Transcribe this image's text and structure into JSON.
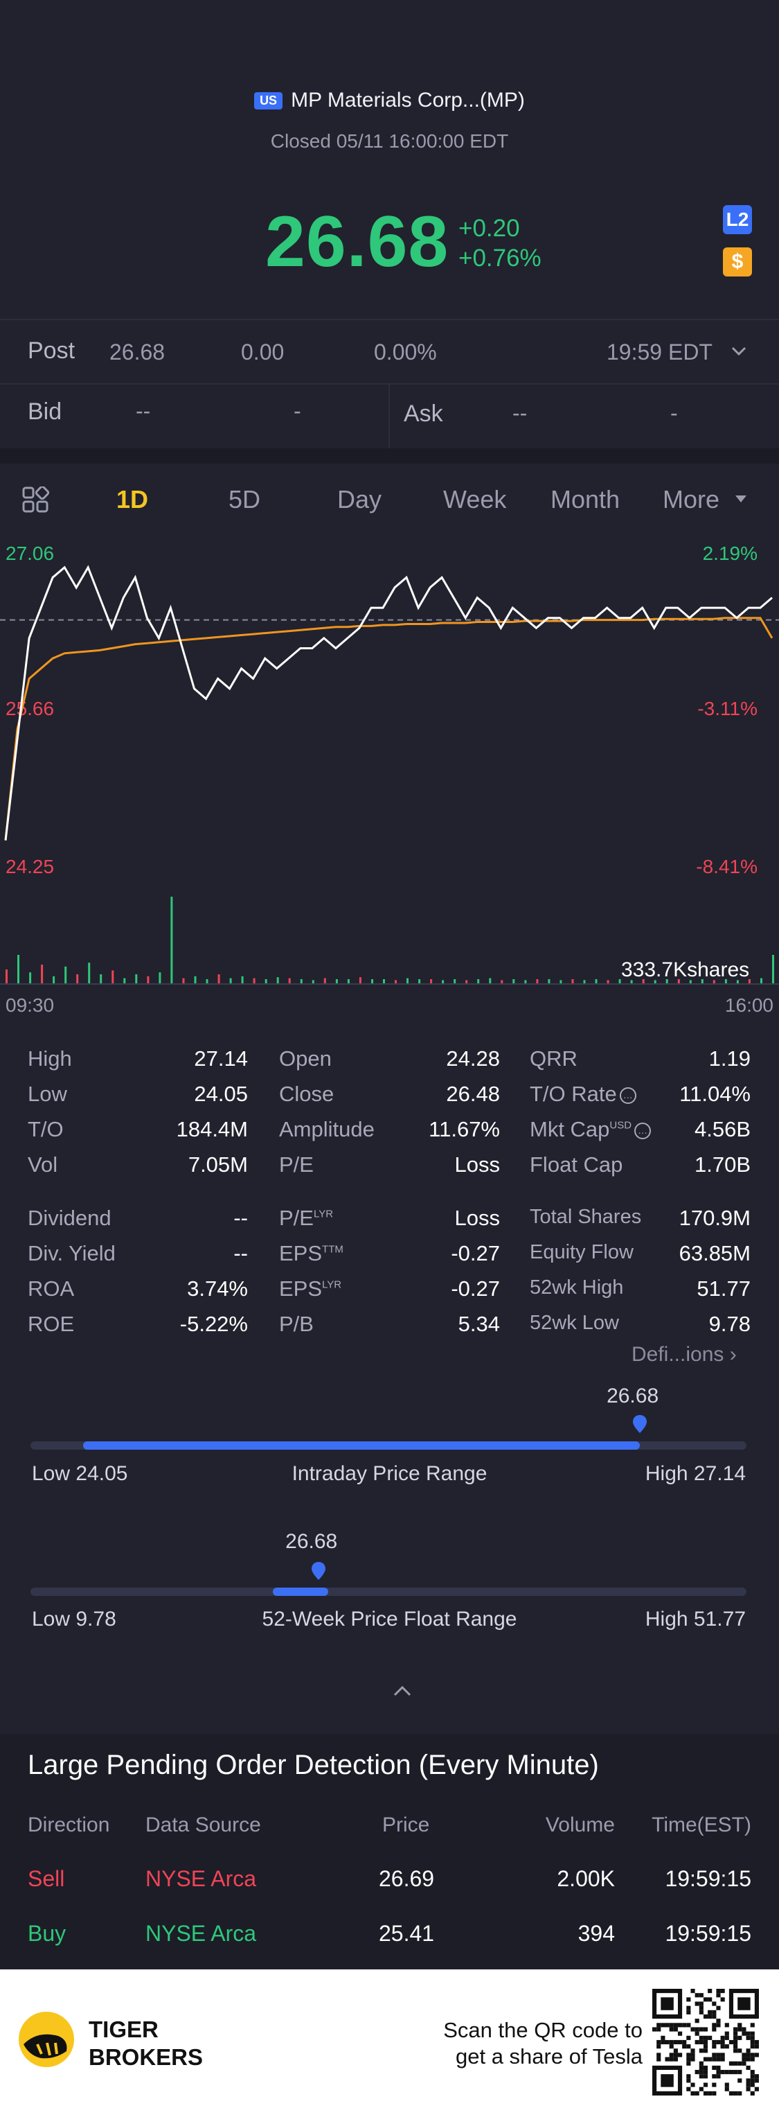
{
  "header": {
    "market_badge": "US",
    "stock_title": "MP Materials Corp...(MP)",
    "status": "Closed 05/11 16:00:00 EDT",
    "price": "26.68",
    "change": "+0.20",
    "change_pct": "+0.76%",
    "l2_badge": "L2",
    "dollar_badge": "$",
    "price_color": "#2fc77a"
  },
  "post": {
    "label": "Post",
    "price": "26.68",
    "change": "0.00",
    "change_pct": "0.00%",
    "time": "19:59 EDT"
  },
  "bid_ask": {
    "bid_label": "Bid",
    "bid_price": "--",
    "bid_size": "-",
    "ask_label": "Ask",
    "ask_price": "--",
    "ask_size": "-"
  },
  "tabs": [
    {
      "label": "1D",
      "active": true
    },
    {
      "label": "5D",
      "active": false
    },
    {
      "label": "Day",
      "active": false
    },
    {
      "label": "Week",
      "active": false
    },
    {
      "label": "Month",
      "active": false
    },
    {
      "label": "More",
      "active": false
    }
  ],
  "chart_data": {
    "type": "line",
    "title": "",
    "y_left_labels": [
      "27.06",
      "25.66",
      "24.25"
    ],
    "y_right_labels": [
      "2.19%",
      "-3.11%",
      "-8.41%"
    ],
    "ylim": [
      24.25,
      27.06
    ],
    "prev_close": 26.48,
    "x_labels": [
      "09:30",
      "16:00"
    ],
    "volume_label": "333.7Kshares",
    "series": [
      {
        "color": "#ffffff",
        "values": [
          24.3,
          25.3,
          26.3,
          26.6,
          26.9,
          27.0,
          26.8,
          27.0,
          26.7,
          26.4,
          26.7,
          26.9,
          26.5,
          26.3,
          26.6,
          26.2,
          25.8,
          25.7,
          25.9,
          25.8,
          26.0,
          25.9,
          26.1,
          26.0,
          26.1,
          26.2,
          26.2,
          26.3,
          26.2,
          26.3,
          26.4,
          26.6,
          26.6,
          26.8,
          26.9,
          26.6,
          26.8,
          26.9,
          26.7,
          26.5,
          26.7,
          26.6,
          26.4,
          26.6,
          26.5,
          26.4,
          26.5,
          26.5,
          26.4,
          26.5,
          26.5,
          26.6,
          26.5,
          26.5,
          26.6,
          26.4,
          26.6,
          26.6,
          26.5,
          26.6,
          26.6,
          26.6,
          26.5,
          26.6,
          26.6,
          26.7
        ]
      },
      {
        "color": "#f0951f",
        "values": [
          24.3,
          25.4,
          25.9,
          26.0,
          26.1,
          26.15,
          26.16,
          26.17,
          26.18,
          26.2,
          26.22,
          26.24,
          26.25,
          26.26,
          26.27,
          26.28,
          26.29,
          26.3,
          26.31,
          26.32,
          26.33,
          26.34,
          26.35,
          26.36,
          26.37,
          26.38,
          26.39,
          26.4,
          26.41,
          26.41,
          26.42,
          26.42,
          26.43,
          26.43,
          26.44,
          26.44,
          26.44,
          26.45,
          26.45,
          26.45,
          26.46,
          26.46,
          26.46,
          26.46,
          26.47,
          26.47,
          26.47,
          26.47,
          26.47,
          26.48,
          26.48,
          26.48,
          26.48,
          26.48,
          26.48,
          26.49,
          26.49,
          26.49,
          26.49,
          26.49,
          26.49,
          26.5,
          26.5,
          26.5,
          26.5,
          26.3
        ]
      }
    ],
    "volume_bars": [
      0.15,
      0.3,
      0.12,
      0.2,
      0.08,
      0.18,
      0.1,
      0.22,
      0.1,
      0.14,
      0.06,
      0.1,
      0.08,
      0.12,
      0.9,
      0.06,
      0.08,
      0.05,
      0.1,
      0.06,
      0.08,
      0.06,
      0.05,
      0.07,
      0.06,
      0.05,
      0.04,
      0.06,
      0.05,
      0.05,
      0.07,
      0.05,
      0.05,
      0.04,
      0.06,
      0.05,
      0.05,
      0.04,
      0.05,
      0.04,
      0.05,
      0.06,
      0.04,
      0.05,
      0.04,
      0.05,
      0.05,
      0.04,
      0.05,
      0.04,
      0.05,
      0.04,
      0.05,
      0.04,
      0.05,
      0.04,
      0.05,
      0.05,
      0.04,
      0.05,
      0.04,
      0.05,
      0.04,
      0.05,
      0.06,
      0.3
    ]
  },
  "stats": {
    "col1": [
      {
        "label": "High",
        "value": "27.14"
      },
      {
        "label": "Low",
        "value": "24.05"
      },
      {
        "label": "T/O",
        "value": "184.4M"
      },
      {
        "label": "Vol",
        "value": "7.05M"
      }
    ],
    "col2": [
      {
        "label": "Open",
        "value": "24.28"
      },
      {
        "label": "Close",
        "value": "26.48"
      },
      {
        "label": "Amplitude",
        "value": "11.67%"
      },
      {
        "label": "P/E",
        "value": "Loss"
      }
    ],
    "col3": [
      {
        "label": "QRR",
        "value": "1.19"
      },
      {
        "label": "T/O Rate",
        "value": "11.04%"
      },
      {
        "label": "Mkt Cap",
        "value": "4.56B",
        "sup": "USD"
      },
      {
        "label": "Float Cap",
        "value": "1.70B"
      }
    ],
    "col1b": [
      {
        "label": "Dividend",
        "value": "--"
      },
      {
        "label": "Div. Yield",
        "value": "--"
      },
      {
        "label": "ROA",
        "value": "3.74%"
      },
      {
        "label": "ROE",
        "value": "-5.22%"
      }
    ],
    "col2b": [
      {
        "label": "P/E",
        "sup": "LYR",
        "value": "Loss"
      },
      {
        "label": "EPS",
        "sup": "TTM",
        "value": "-0.27"
      },
      {
        "label": "EPS",
        "sup": "LYR",
        "value": "-0.27"
      },
      {
        "label": "P/B",
        "value": "5.34"
      }
    ],
    "col3b": [
      {
        "label": "Total Shares",
        "value": "170.9M"
      },
      {
        "label": "Equity Flow",
        "value": "63.85M"
      },
      {
        "label": "52wk High",
        "value": "51.77"
      },
      {
        "label": "52wk Low",
        "value": "9.78"
      }
    ],
    "definitions_link": "Defi...ions"
  },
  "intraday_range": {
    "low_label": "Low 24.05",
    "title": "Intraday Price Range",
    "high_label": "High 27.14",
    "current": "26.68",
    "low": 24.05,
    "high": 27.14,
    "value": 26.68
  },
  "week52_range": {
    "low_label": "Low 9.78",
    "title": "52-Week Price Float Range",
    "high_label": "High 51.77",
    "current": "26.68",
    "low": 9.78,
    "high": 51.77,
    "value": 26.68
  },
  "orders": {
    "title": "Large Pending Order Detection (Every Minute)",
    "headers": [
      "Direction",
      "Data Source",
      "Price",
      "Volume",
      "Time(EST)"
    ],
    "rows": [
      {
        "direction": "Sell",
        "source": "NYSE Arca",
        "price": "26.69",
        "volume": "2.00K",
        "time": "19:59:15",
        "color": "#f04456"
      },
      {
        "direction": "Buy",
        "source": "NYSE Arca",
        "price": "25.41",
        "volume": "394",
        "time": "19:59:15",
        "color": "#2fc77a"
      }
    ]
  },
  "footer": {
    "brand_line1": "TIGER",
    "brand_line2": "BROKERS",
    "scan_line1": "Scan the QR code to",
    "scan_line2": "get a share of Tesla"
  }
}
